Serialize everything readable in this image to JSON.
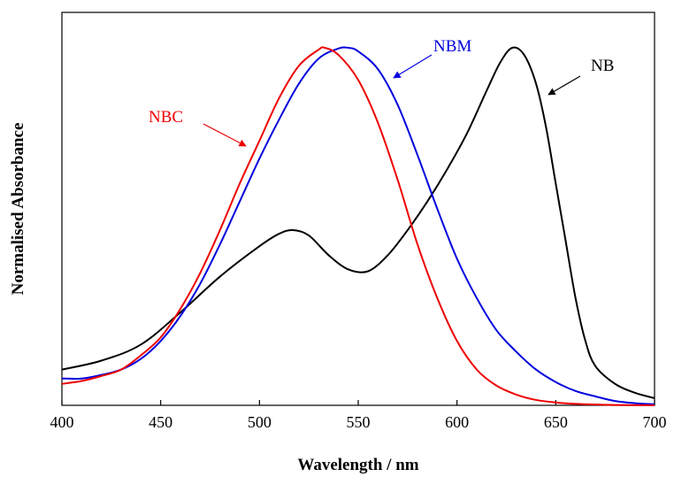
{
  "chart_data": {
    "type": "line",
    "title": "",
    "xlabel": "Wavelength / nm",
    "ylabel": "Normalised Absorbance",
    "xlim": [
      400,
      700
    ],
    "ylim": [
      0,
      1
    ],
    "xticks": [
      400,
      450,
      500,
      550,
      600,
      650,
      700
    ],
    "xtick_labels": [
      "400",
      "450",
      "500",
      "550",
      "600",
      "650",
      "700"
    ],
    "grid": false,
    "series": [
      {
        "name": "NB",
        "color": "#000000",
        "x": [
          400,
          420,
          440,
          460,
          480,
          500,
          510,
          517,
          525,
          535,
          545,
          555,
          565,
          575,
          585,
          595,
          605,
          615,
          622,
          628,
          634,
          640,
          645,
          650,
          655,
          660,
          665,
          670,
          680,
          690,
          700
        ],
        "y": [
          0.1,
          0.125,
          0.17,
          0.26,
          0.36,
          0.445,
          0.48,
          0.49,
          0.475,
          0.42,
          0.38,
          0.375,
          0.42,
          0.49,
          0.57,
          0.66,
          0.76,
          0.88,
          0.96,
          1.0,
          0.98,
          0.9,
          0.78,
          0.62,
          0.46,
          0.3,
          0.18,
          0.11,
          0.06,
          0.035,
          0.02
        ]
      },
      {
        "name": "NBM",
        "color": "#0000dd",
        "x": [
          400,
          410,
          420,
          430,
          440,
          450,
          460,
          470,
          480,
          490,
          500,
          510,
          520,
          530,
          540,
          545,
          550,
          560,
          570,
          580,
          590,
          600,
          610,
          620,
          630,
          640,
          650,
          660,
          670,
          680,
          690,
          700
        ],
        "y": [
          0.075,
          0.075,
          0.085,
          0.1,
          0.13,
          0.18,
          0.25,
          0.34,
          0.45,
          0.57,
          0.69,
          0.8,
          0.9,
          0.97,
          0.998,
          1.0,
          0.99,
          0.94,
          0.84,
          0.7,
          0.55,
          0.41,
          0.3,
          0.21,
          0.15,
          0.1,
          0.065,
          0.04,
          0.025,
          0.012,
          0.006,
          0.003
        ]
      },
      {
        "name": "NBC",
        "color": "#ee0000",
        "x": [
          400,
          410,
          420,
          430,
          440,
          450,
          460,
          470,
          480,
          490,
          500,
          510,
          520,
          530,
          533,
          540,
          550,
          560,
          570,
          580,
          590,
          600,
          610,
          620,
          630,
          640,
          650,
          660,
          680,
          700
        ],
        "y": [
          0.06,
          0.068,
          0.082,
          0.1,
          0.14,
          0.19,
          0.27,
          0.37,
          0.49,
          0.62,
          0.74,
          0.86,
          0.95,
          0.995,
          1.0,
          0.98,
          0.91,
          0.79,
          0.63,
          0.45,
          0.3,
          0.18,
          0.1,
          0.055,
          0.03,
          0.015,
          0.008,
          0.004,
          0.001,
          0.0
        ]
      }
    ],
    "annotations": [
      {
        "text": "NBC",
        "color": "#ee0000",
        "arrow_to_x": 535,
        "arrow_to_y": 0.72
      },
      {
        "text": "NBM",
        "color": "#0000dd",
        "arrow_to_x": 573,
        "arrow_to_y": 0.92
      },
      {
        "text": "NB",
        "color": "#000000",
        "arrow_to_x": 645,
        "arrow_to_y": 0.8
      }
    ]
  }
}
